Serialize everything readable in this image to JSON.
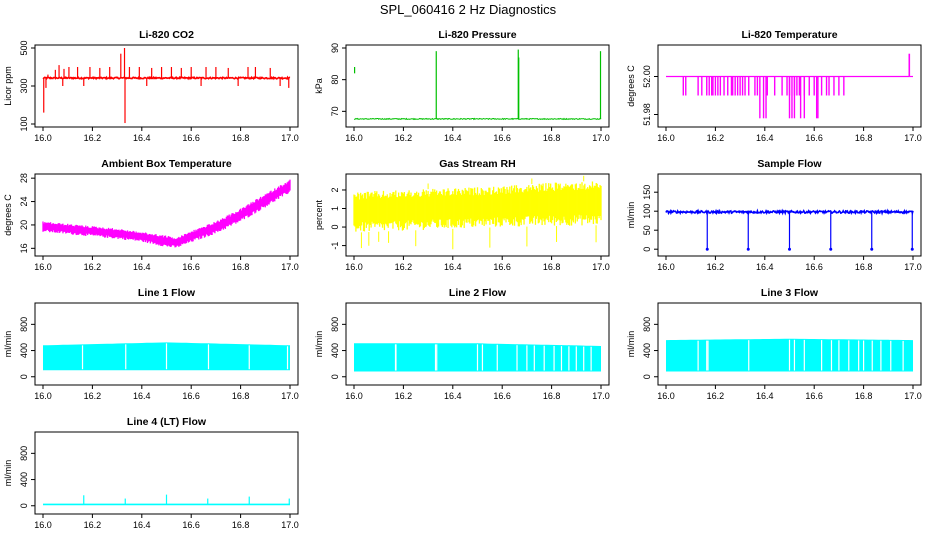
{
  "figure": {
    "title": "SPL_060416  2 Hz Diagnostics"
  },
  "chart_data": [
    {
      "type": "line",
      "title": "Li-820 CO2",
      "xlabel": "",
      "ylabel": "Licor ppm",
      "color": "#ff0000",
      "xlim": [
        16.0,
        17.0
      ],
      "ylim": [
        100,
        500
      ],
      "xticks": [
        "16.0",
        "16.2",
        "16.4",
        "16.6",
        "16.8",
        "17.0"
      ],
      "yticks": [
        {
          "v": 100,
          "label": "100"
        },
        {
          "v": 300,
          "label": "300"
        },
        {
          "v": 500,
          "label": "500"
        }
      ],
      "series": [
        {
          "name": "CO2",
          "baseline": 342,
          "noise": 4,
          "min": 100,
          "max": 500,
          "spikes": [
            [
              16.003,
              160
            ],
            [
              16.012,
              290
            ],
            [
              16.02,
              360
            ],
            [
              16.05,
              385
            ],
            [
              16.065,
              410
            ],
            [
              16.08,
              300
            ],
            [
              16.085,
              390
            ],
            [
              16.105,
              400
            ],
            [
              16.14,
              400
            ],
            [
              16.165,
              300
            ],
            [
              16.19,
              400
            ],
            [
              16.23,
              395
            ],
            [
              16.27,
              400
            ],
            [
              16.315,
              470
            ],
            [
              16.33,
              500
            ],
            [
              16.332,
              105
            ],
            [
              16.35,
              400
            ],
            [
              16.39,
              400
            ],
            [
              16.42,
              300
            ],
            [
              16.44,
              395
            ],
            [
              16.48,
              400
            ],
            [
              16.52,
              400
            ],
            [
              16.56,
              395
            ],
            [
              16.6,
              400
            ],
            [
              16.64,
              300
            ],
            [
              16.66,
              400
            ],
            [
              16.7,
              400
            ],
            [
              16.75,
              395
            ],
            [
              16.79,
              300
            ],
            [
              16.83,
              400
            ],
            [
              16.86,
              400
            ],
            [
              16.92,
              395
            ],
            [
              16.96,
              300
            ],
            [
              16.995,
              290
            ]
          ]
        }
      ]
    },
    {
      "type": "line",
      "title": "Li-820 Pressure",
      "xlabel": "",
      "ylabel": "kPa",
      "color": "#00c000",
      "xlim": [
        16.0,
        17.0
      ],
      "ylim": [
        66,
        90
      ],
      "xticks": [
        "16.0",
        "16.2",
        "16.4",
        "16.6",
        "16.8",
        "17.0"
      ],
      "yticks": [
        {
          "v": 70,
          "label": "70"
        },
        {
          "v": 80,
          "label": "80"
        },
        {
          "v": 90,
          "label": "90"
        }
      ],
      "series": [
        {
          "name": "Pressure",
          "baseline": 67.6,
          "noise": 0.15,
          "segments": [
            [
              16.0,
              16.003,
              82.0,
              84.0
            ]
          ],
          "spikes": [
            [
              16.333,
              89.0
            ],
            [
              16.665,
              89.5
            ],
            [
              16.667,
              87.0
            ],
            [
              16.998,
              89.0
            ]
          ]
        }
      ]
    },
    {
      "type": "line",
      "title": "Li-820 Temperature",
      "xlabel": "",
      "ylabel": "degrees C",
      "color": "#ff00ff",
      "xlim": [
        16.0,
        17.0
      ],
      "ylim": [
        51.975,
        52.015
      ],
      "xticks": [
        "16.0",
        "16.2",
        "16.4",
        "16.6",
        "16.8",
        "17.0"
      ],
      "yticks": [
        {
          "v": 51.98,
          "label": "51.98"
        },
        {
          "v": 52.0,
          "label": "52.00"
        }
      ],
      "series": [
        {
          "name": "Temperature",
          "baseline": 52.0,
          "dropsTo51990": [
            16.07,
            16.08,
            16.13,
            16.145,
            16.165,
            16.175,
            16.185,
            16.19,
            16.2,
            16.21,
            16.22,
            16.235,
            16.25,
            16.265,
            16.27,
            16.28,
            16.29,
            16.3,
            16.31,
            16.32,
            16.335,
            16.36,
            16.37,
            16.41,
            16.44,
            16.47,
            16.49,
            16.5,
            16.52,
            16.53,
            16.54,
            16.56,
            16.58,
            16.6,
            16.63,
            16.65,
            16.66,
            16.68,
            16.7,
            16.72
          ],
          "dropsTo51978": [
            16.38,
            16.395,
            16.405,
            16.5,
            16.51,
            16.52,
            16.545,
            16.56,
            16.61,
            16.615
          ],
          "rise": [
            16.985,
            17.0,
            52.012
          ]
        }
      ]
    },
    {
      "type": "area",
      "title": "Ambient Box Temperature",
      "xlabel": "",
      "ylabel": "degrees C",
      "color": "#ff00ff",
      "xlim": [
        16.0,
        17.0
      ],
      "ylim": [
        15.2,
        28.2
      ],
      "xticks": [
        "16.0",
        "16.2",
        "16.4",
        "16.6",
        "16.8",
        "17.0"
      ],
      "yticks": [
        {
          "v": 16,
          "label": "16"
        },
        {
          "v": 20,
          "label": "20"
        },
        {
          "v": 24,
          "label": "24"
        },
        {
          "v": 28,
          "label": "28"
        }
      ],
      "series": [
        {
          "name": "Temperature band",
          "x": [
            16.0,
            16.1,
            16.2,
            16.3,
            16.4,
            16.5,
            16.54,
            16.6,
            16.7,
            16.8,
            16.9,
            17.0
          ],
          "low": [
            18.8,
            18.4,
            18.0,
            17.6,
            17.1,
            16.2,
            16.0,
            17.0,
            18.5,
            20.5,
            23.0,
            25.5
          ],
          "high": [
            20.6,
            20.2,
            19.8,
            19.4,
            18.8,
            18.2,
            17.8,
            19.0,
            20.6,
            22.8,
            25.3,
            27.8
          ]
        }
      ]
    },
    {
      "type": "area",
      "title": "Gas Stream RH",
      "xlabel": "",
      "ylabel": "percent",
      "color": "#ffff00",
      "xlim": [
        16.0,
        17.0
      ],
      "ylim": [
        -1.4,
        2.7
      ],
      "xticks": [
        "16.0",
        "16.2",
        "16.4",
        "16.6",
        "16.8",
        "17.0"
      ],
      "yticks": [
        {
          "v": -1,
          "label": "-1"
        },
        {
          "v": 0,
          "label": "0"
        },
        {
          "v": 1,
          "label": "1"
        },
        {
          "v": 2,
          "label": "2"
        }
      ],
      "series": [
        {
          "name": "RH band",
          "x": [
            16.0,
            16.2,
            16.4,
            16.6,
            16.8,
            17.0
          ],
          "low": [
            -0.3,
            -0.2,
            -0.1,
            0.0,
            0.05,
            0.1
          ],
          "high": [
            1.9,
            2.0,
            2.1,
            2.2,
            2.4,
            2.5
          ],
          "outliersLow": [
            16.03,
            16.06,
            16.1,
            16.14,
            16.25,
            16.4,
            16.55,
            16.7,
            16.82,
            16.98
          ],
          "outliersHigh": [
            16.3,
            16.72,
            16.93
          ]
        }
      ]
    },
    {
      "type": "line",
      "title": "Sample Flow",
      "xlabel": "",
      "ylabel": "ml/min",
      "color": "#0000ff",
      "xlim": [
        16.0,
        17.0
      ],
      "ylim": [
        -10,
        190
      ],
      "xticks": [
        "16.0",
        "16.2",
        "16.4",
        "16.6",
        "16.8",
        "17.0"
      ],
      "yticks": [
        {
          "v": 0,
          "label": "0"
        },
        {
          "v": 50,
          "label": "50"
        },
        {
          "v": 100,
          "label": "100"
        },
        {
          "v": 150,
          "label": "150"
        }
      ],
      "series": [
        {
          "name": "Sample Flow",
          "baseline": 98,
          "noise": 3,
          "dips": [
            16.167,
            16.333,
            16.5,
            16.667,
            16.833,
            16.997
          ]
        }
      ]
    },
    {
      "type": "area",
      "title": "Line 1 Flow",
      "xlabel": "",
      "ylabel": "ml/min",
      "color": "#00ffff",
      "xlim": [
        16.0,
        17.0
      ],
      "ylim": [
        -80,
        1080
      ],
      "xticks": [
        "16.0",
        "16.2",
        "16.4",
        "16.6",
        "16.8",
        "17.0"
      ],
      "yticks": [
        {
          "v": 0,
          "label": "0"
        },
        {
          "v": 400,
          "label": "400"
        },
        {
          "v": 800,
          "label": "800"
        }
      ],
      "series": [
        {
          "name": "Line 1 Flow",
          "low": [
            [
              16.0,
              100
            ],
            [
              17.0,
              100
            ]
          ],
          "high": [
            [
              16.0,
              480
            ],
            [
              16.5,
              525
            ],
            [
              17.0,
              480
            ]
          ],
          "gaps": [
            16.16,
            16.335,
            16.5,
            16.67,
            16.835,
            16.99
          ]
        }
      ]
    },
    {
      "type": "area",
      "title": "Line 2 Flow",
      "xlabel": "",
      "ylabel": "ml/min",
      "color": "#00ffff",
      "xlim": [
        16.0,
        17.0
      ],
      "ylim": [
        -80,
        1080
      ],
      "xticks": [
        "16.0",
        "16.2",
        "16.4",
        "16.6",
        "16.8",
        "17.0"
      ],
      "yticks": [
        {
          "v": 0,
          "label": "0"
        },
        {
          "v": 400,
          "label": "400"
        },
        {
          "v": 800,
          "label": "800"
        }
      ],
      "series": [
        {
          "name": "Line 2 Flow",
          "low": [
            [
              16.0,
              80
            ],
            [
              17.0,
              80
            ]
          ],
          "high": [
            [
              16.0,
              510
            ],
            [
              16.5,
              510
            ],
            [
              17.0,
              470
            ]
          ],
          "gaps": [
            16.168,
            16.17,
            16.33,
            16.335,
            16.5,
            16.52,
            16.58,
            16.66,
            16.7,
            16.73,
            16.77,
            16.81,
            16.84,
            16.87,
            16.9,
            16.93,
            16.96
          ]
        }
      ]
    },
    {
      "type": "area",
      "title": "Line 3 Flow",
      "xlabel": "",
      "ylabel": "ml/min",
      "color": "#00ffff",
      "xlim": [
        16.0,
        17.0
      ],
      "ylim": [
        -80,
        1080
      ],
      "xticks": [
        "16.0",
        "16.2",
        "16.4",
        "16.6",
        "16.8",
        "17.0"
      ],
      "yticks": [
        {
          "v": 0,
          "label": "0"
        },
        {
          "v": 400,
          "label": "400"
        },
        {
          "v": 800,
          "label": "800"
        }
      ],
      "series": [
        {
          "name": "Line 3 Flow",
          "low": [
            [
              16.0,
              80
            ],
            [
              17.0,
              80
            ]
          ],
          "high": [
            [
              16.0,
              560
            ],
            [
              16.5,
              580
            ],
            [
              17.0,
              560
            ]
          ],
          "gaps": [
            16.13,
            16.165,
            16.17,
            16.335,
            16.5,
            16.52,
            16.56,
            16.63,
            16.67,
            16.7,
            16.74,
            16.78,
            16.8,
            16.835,
            16.87,
            16.91,
            16.96
          ]
        }
      ]
    },
    {
      "type": "line",
      "title": "Line 4 (LT) Flow",
      "xlabel": "",
      "ylabel": "ml/min",
      "color": "#00ffff",
      "xlim": [
        16.0,
        17.0
      ],
      "ylim": [
        -80,
        1080
      ],
      "xticks": [
        "16.0",
        "16.2",
        "16.4",
        "16.6",
        "16.8",
        "17.0"
      ],
      "yticks": [
        {
          "v": 0,
          "label": "0"
        },
        {
          "v": 400,
          "label": "400"
        },
        {
          "v": 800,
          "label": "800"
        }
      ],
      "series": [
        {
          "name": "Line 4 Flow",
          "baseline": 20,
          "spikes": [
            [
              16.165,
              160
            ],
            [
              16.333,
              110
            ],
            [
              16.5,
              170
            ],
            [
              16.667,
              110
            ],
            [
              16.835,
              140
            ],
            [
              16.997,
              110
            ]
          ]
        }
      ]
    }
  ]
}
